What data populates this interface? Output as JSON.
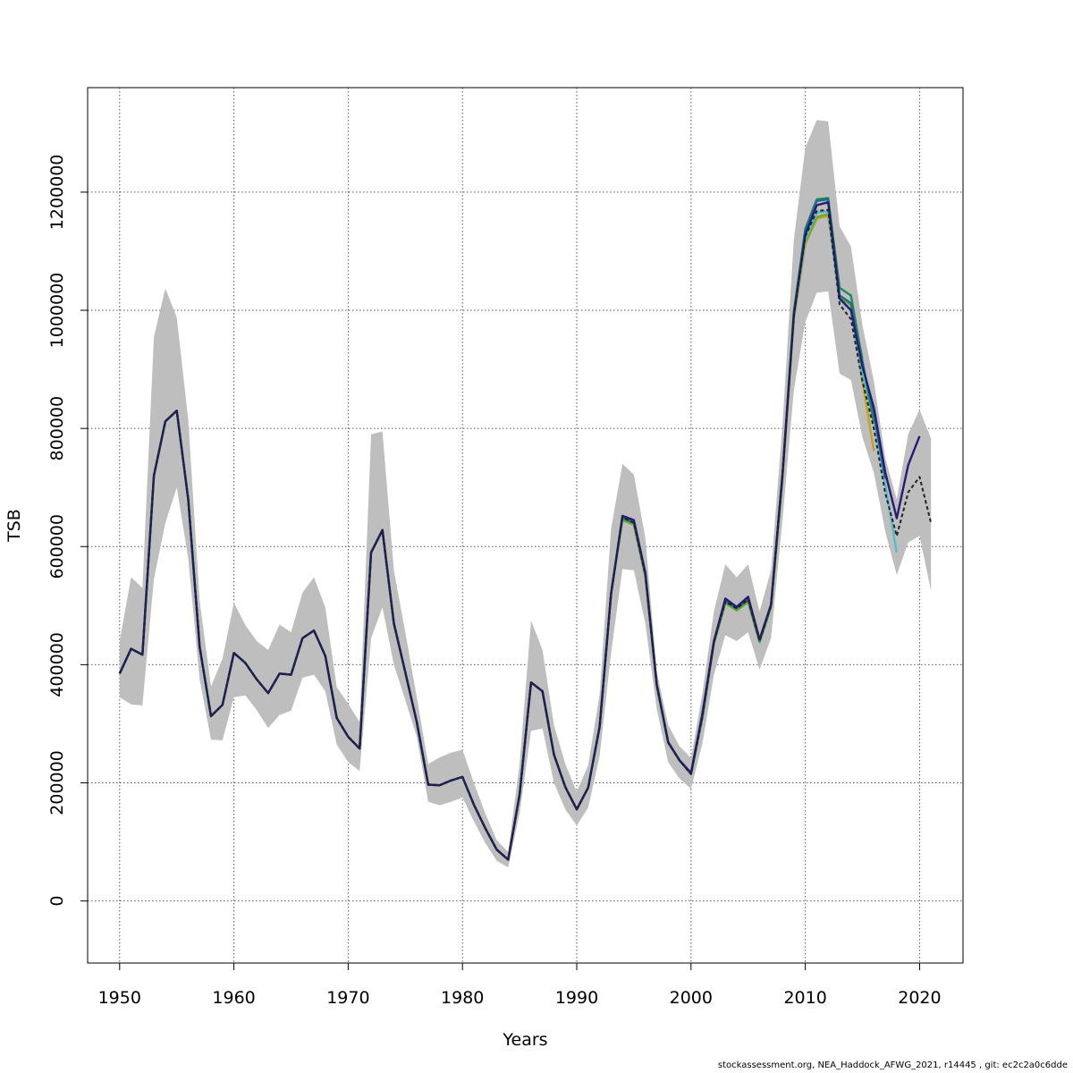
{
  "chart_data": {
    "type": "line",
    "xlabel": "Years",
    "ylabel": "TSB",
    "xlim": [
      1947.2,
      2023.8
    ],
    "ylim": [
      -105000,
      1377000
    ],
    "x_ticks": [
      1950,
      1960,
      1970,
      1980,
      1990,
      2000,
      2010,
      2020
    ],
    "x_tick_labels": [
      "1950",
      "1960",
      "1970",
      "1980",
      "1990",
      "2000",
      "2010",
      "2020"
    ],
    "y_ticks": [
      0,
      200000,
      400000,
      600000,
      800000,
      1000000,
      1200000
    ],
    "y_tick_labels": [
      "0",
      "200000",
      "400000",
      "600000",
      "800000",
      "1000000",
      "1200000"
    ],
    "grid": true,
    "grid_style": "dotted",
    "confidence_band": {
      "color": "#bebebe",
      "start_year": 1950,
      "lower": [
        345000,
        333000,
        331000,
        545000,
        640000,
        700000,
        580000,
        375000,
        273000,
        272000,
        345000,
        348000,
        323000,
        293000,
        315000,
        322000,
        378000,
        383000,
        355000,
        265000,
        235000,
        220000,
        445000,
        497000,
        400000,
        340000,
        278000,
        168000,
        162000,
        168000,
        175000,
        135000,
        98000,
        68000,
        57000,
        148000,
        288000,
        292000,
        200000,
        155000,
        128000,
        158000,
        245000,
        420000,
        562000,
        560000,
        470000,
        325000,
        235000,
        207000,
        190000,
        267000,
        383000,
        450000,
        440000,
        455000,
        392000,
        445000,
        645000,
        865000,
        980000,
        1030000,
        1032000,
        893000,
        882000,
        785000,
        725000,
        625000,
        552000,
        607000,
        618000,
        525000
      ],
      "upper": [
        440000,
        548000,
        530000,
        955000,
        1037000,
        988000,
        815000,
        508000,
        363000,
        410000,
        505000,
        467000,
        440000,
        425000,
        468000,
        455000,
        522000,
        548000,
        497000,
        362000,
        334000,
        303000,
        790000,
        795000,
        560000,
        455000,
        345000,
        232000,
        243000,
        251000,
        256000,
        200000,
        148000,
        103000,
        83000,
        232000,
        475000,
        425000,
        298000,
        232000,
        185000,
        230000,
        350000,
        630000,
        740000,
        722000,
        615000,
        388000,
        298000,
        262000,
        242000,
        352000,
        490000,
        570000,
        548000,
        570000,
        490000,
        560000,
        805000,
        1120000,
        1275000,
        1322000,
        1320000,
        1142000,
        1108000,
        975000,
        880000,
        750000,
        680000,
        790000,
        832000,
        783000
      ]
    },
    "series": [
      {
        "color": "#222222",
        "dashed": true,
        "start_year": 1950,
        "values": [
          385000,
          427000,
          417000,
          720000,
          812000,
          830000,
          680000,
          430000,
          313000,
          332000,
          420000,
          403000,
          375000,
          352000,
          385000,
          383000,
          445000,
          458000,
          415000,
          310000,
          278000,
          258000,
          590000,
          628000,
          470000,
          387000,
          303000,
          197000,
          196000,
          204000,
          210000,
          163000,
          123000,
          87000,
          70000,
          180000,
          370000,
          355000,
          248000,
          193000,
          155000,
          192000,
          295000,
          520000,
          650000,
          640000,
          552000,
          365000,
          268000,
          238000,
          215000,
          312000,
          438000,
          507000,
          495000,
          510000,
          440000,
          500000,
          720000,
          990000,
          1125000,
          1168000,
          1170000,
          1010000,
          985000,
          880000,
          800000,
          690000,
          618000,
          692000,
          718000,
          640000
        ]
      },
      {
        "color": "#2a1a78",
        "start_year": 1950,
        "values": [
          385000,
          427000,
          417000,
          720000,
          812000,
          830000,
          680000,
          430000,
          313000,
          332000,
          420000,
          403000,
          375000,
          352000,
          385000,
          383000,
          445000,
          458000,
          415000,
          310000,
          278000,
          258000,
          590000,
          628000,
          470000,
          387000,
          303000,
          197000,
          196000,
          204000,
          210000,
          163000,
          123000,
          87000,
          70000,
          180000,
          370000,
          355000,
          248000,
          193000,
          155000,
          192000,
          295000,
          520000,
          652000,
          645000,
          556000,
          367000,
          269000,
          238000,
          217000,
          318000,
          440000,
          512000,
          498000,
          515000,
          443000,
          502000,
          722000,
          992000,
          1128000,
          1178000,
          1183000,
          1020000,
          1000000,
          905000,
          835000,
          725000,
          648000,
          738000,
          787000
        ]
      },
      {
        "color": "#1f6b8a",
        "start_year": 1950,
        "values": [
          385000,
          427000,
          417000,
          720000,
          812000,
          830000,
          680000,
          430000,
          313000,
          332000,
          420000,
          403000,
          375000,
          352000,
          385000,
          383000,
          445000,
          458000,
          415000,
          310000,
          278000,
          258000,
          590000,
          628000,
          470000,
          387000,
          303000,
          197000,
          196000,
          204000,
          210000,
          163000,
          123000,
          87000,
          70000,
          180000,
          370000,
          355000,
          248000,
          193000,
          155000,
          192000,
          295000,
          520000,
          650000,
          642000,
          554000,
          366000,
          268000,
          238000,
          215000,
          314000,
          438000,
          509000,
          496000,
          512000,
          441000,
          500000,
          722000,
          995000,
          1135000,
          1185000,
          1188000,
          1025000,
          1012000,
          910000,
          825000,
          715000
        ]
      },
      {
        "color": "#1e8a5a",
        "start_year": 1950,
        "values": [
          385000,
          427000,
          417000,
          720000,
          812000,
          830000,
          680000,
          430000,
          313000,
          332000,
          420000,
          403000,
          375000,
          352000,
          385000,
          383000,
          445000,
          458000,
          415000,
          310000,
          278000,
          258000,
          590000,
          628000,
          470000,
          387000,
          303000,
          197000,
          196000,
          204000,
          210000,
          163000,
          123000,
          87000,
          70000,
          180000,
          370000,
          355000,
          248000,
          193000,
          155000,
          192000,
          295000,
          520000,
          648000,
          640000,
          552000,
          365000,
          268000,
          238000,
          215000,
          312000,
          438000,
          507000,
          495000,
          510000,
          440000,
          500000,
          720000,
          998000,
          1138000,
          1188000,
          1190000,
          1038000,
          1025000,
          915000,
          810000
        ]
      },
      {
        "color": "#4fc0c8",
        "start_year": 1950,
        "values": [
          385000,
          427000,
          417000,
          720000,
          812000,
          830000,
          680000,
          430000,
          313000,
          332000,
          420000,
          403000,
          375000,
          352000,
          385000,
          383000,
          445000,
          458000,
          415000,
          310000,
          278000,
          258000,
          590000,
          628000,
          470000,
          387000,
          303000,
          197000,
          196000,
          204000,
          210000,
          163000,
          123000,
          87000,
          70000,
          180000,
          370000,
          355000,
          248000,
          193000,
          155000,
          192000,
          295000,
          520000,
          648000,
          640000,
          552000,
          365000,
          268000,
          238000,
          215000,
          312000,
          438000,
          507000,
          495000,
          510000,
          440000,
          500000,
          720000,
          990000,
          1120000,
          1165000,
          1168000,
          1018000,
          1000000,
          890000,
          815000,
          705000,
          590000
        ]
      },
      {
        "color": "#6aa832",
        "start_year": 1950,
        "values": [
          385000,
          427000,
          417000,
          720000,
          812000,
          830000,
          680000,
          430000,
          313000,
          332000,
          420000,
          403000,
          375000,
          352000,
          385000,
          383000,
          445000,
          458000,
          415000,
          310000,
          278000,
          258000,
          590000,
          628000,
          470000,
          387000,
          303000,
          197000,
          196000,
          204000,
          210000,
          163000,
          123000,
          87000,
          70000,
          180000,
          370000,
          355000,
          248000,
          193000,
          155000,
          192000,
          295000,
          520000,
          645000,
          637000,
          550000,
          365000,
          268000,
          238000,
          215000,
          312000,
          436000,
          504000,
          492000,
          506000,
          438000,
          498000,
          718000,
          988000,
          1115000,
          1158000,
          1163000,
          1020000,
          1010000,
          920000
        ]
      },
      {
        "color": "#c8a020",
        "start_year": 1950,
        "values": [
          385000,
          427000,
          417000,
          720000,
          812000,
          830000,
          680000,
          430000,
          313000,
          332000,
          420000,
          403000,
          375000,
          352000,
          385000,
          383000,
          445000,
          458000,
          415000,
          310000,
          278000,
          258000,
          590000,
          628000,
          470000,
          387000,
          303000,
          197000,
          196000,
          204000,
          210000,
          163000,
          123000,
          87000,
          70000,
          180000,
          370000,
          355000,
          248000,
          193000,
          155000,
          192000,
          295000,
          520000,
          645000,
          637000,
          550000,
          365000,
          268000,
          238000,
          215000,
          312000,
          436000,
          504000,
          492000,
          506000,
          438000,
          498000,
          715000,
          985000,
          1112000,
          1155000,
          1160000,
          1025000,
          1008000,
          880000,
          762000
        ]
      }
    ]
  },
  "footer": {
    "credit": "stockassessment.org, NEA_Haddock_AFWG_2021, r14445 , git: ec2c2a0c6dde"
  }
}
